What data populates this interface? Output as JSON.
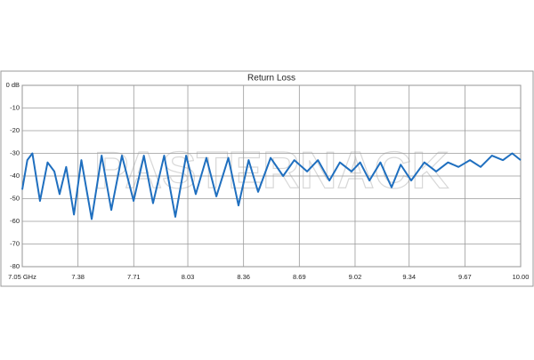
{
  "chart_data": {
    "type": "line",
    "title": "Return Loss",
    "watermark": "PASTERNACK",
    "x": [
      7.05,
      7.08,
      7.11,
      7.155,
      7.2,
      7.24,
      7.271,
      7.31,
      7.356,
      7.4,
      7.461,
      7.52,
      7.577,
      7.64,
      7.709,
      7.77,
      7.824,
      7.89,
      7.956,
      8.02,
      8.077,
      8.14,
      8.199,
      8.27,
      8.33,
      8.39,
      8.446,
      8.52,
      8.594,
      8.66,
      8.736,
      8.8,
      8.868,
      8.93,
      8.999,
      9.05,
      9.105,
      9.17,
      9.236,
      9.29,
      9.352,
      9.43,
      9.5,
      9.57,
      9.632,
      9.7,
      9.763,
      9.83,
      9.895,
      9.95,
      10.0
    ],
    "values": [
      -46,
      -33,
      -30,
      -51,
      -34,
      -38,
      -48,
      -36,
      -57,
      -33,
      -59,
      -31,
      -55,
      -31,
      -51,
      -31,
      -52,
      -31,
      -58,
      -31,
      -48,
      -32,
      -49,
      -32,
      -53,
      -33,
      -47,
      -32,
      -40,
      -33,
      -38,
      -33,
      -42,
      -34,
      -38,
      -34,
      -42,
      -34,
      -45,
      -35,
      -42,
      -34,
      -38,
      -34,
      -36,
      -33,
      -36,
      -31,
      -33,
      -30,
      -33
    ],
    "color": "#1f6fbf",
    "xlim": [
      7.05,
      10.0
    ],
    "xticks": [
      {
        "value": 7.05,
        "label": "7.05  GHz"
      },
      7.38,
      7.71,
      8.03,
      8.36,
      8.69,
      9.02,
      9.34,
      9.67,
      {
        "value": 10.0,
        "label": "10.00"
      }
    ],
    "ylim": [
      -80,
      0
    ],
    "yticks": [
      {
        "value": 0,
        "label": "0 dB"
      },
      -10,
      -20,
      -30,
      -40,
      -50,
      -60,
      -70,
      -80
    ],
    "grid": true
  }
}
